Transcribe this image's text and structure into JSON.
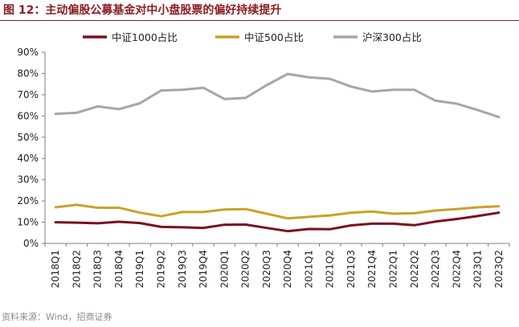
{
  "title": "图 12：主动偏股公募基金对中小盘股票的偏好持续提升",
  "source": "资料来源：Wind，招商证券",
  "chart_data": {
    "type": "line",
    "categories": [
      "2018Q1",
      "2018Q2",
      "2018Q3",
      "2018Q4",
      "2019Q1",
      "2019Q2",
      "2019Q3",
      "2019Q4",
      "2020Q1",
      "2020Q2",
      "2020Q3",
      "2020Q4",
      "2021Q1",
      "2021Q2",
      "2021Q3",
      "2021Q4",
      "2022Q1",
      "2022Q2",
      "2022Q3",
      "2022Q4",
      "2023Q1",
      "2023Q2"
    ],
    "series": [
      {
        "name": "中证1000占比",
        "color": "#7a1020",
        "values": [
          10.0,
          9.8,
          9.5,
          10.2,
          9.6,
          7.8,
          7.6,
          7.3,
          8.8,
          8.9,
          7.3,
          5.8,
          6.8,
          6.7,
          8.5,
          9.3,
          9.3,
          8.6,
          10.3,
          11.5,
          12.9,
          14.5
        ]
      },
      {
        "name": "中证500占比",
        "color": "#c9a227",
        "values": [
          17.0,
          18.2,
          16.8,
          16.8,
          14.5,
          12.8,
          14.8,
          14.8,
          16.0,
          16.2,
          14.0,
          11.8,
          12.5,
          13.2,
          14.5,
          15.0,
          14.0,
          14.2,
          15.5,
          16.2,
          17.0,
          17.5
        ]
      },
      {
        "name": "沪深300占比",
        "color": "#a6a6a6",
        "values": [
          61.0,
          61.5,
          64.5,
          63.2,
          66.0,
          72.0,
          72.3,
          73.3,
          68.0,
          68.5,
          74.5,
          79.8,
          78.2,
          77.5,
          73.8,
          71.5,
          72.3,
          72.3,
          67.2,
          65.8,
          62.8,
          59.5
        ]
      }
    ],
    "ylim": [
      0,
      90
    ],
    "yticks": [
      "0%",
      "10%",
      "20%",
      "30%",
      "40%",
      "50%",
      "60%",
      "70%",
      "80%",
      "90%"
    ],
    "legend": "top",
    "grid": false
  }
}
